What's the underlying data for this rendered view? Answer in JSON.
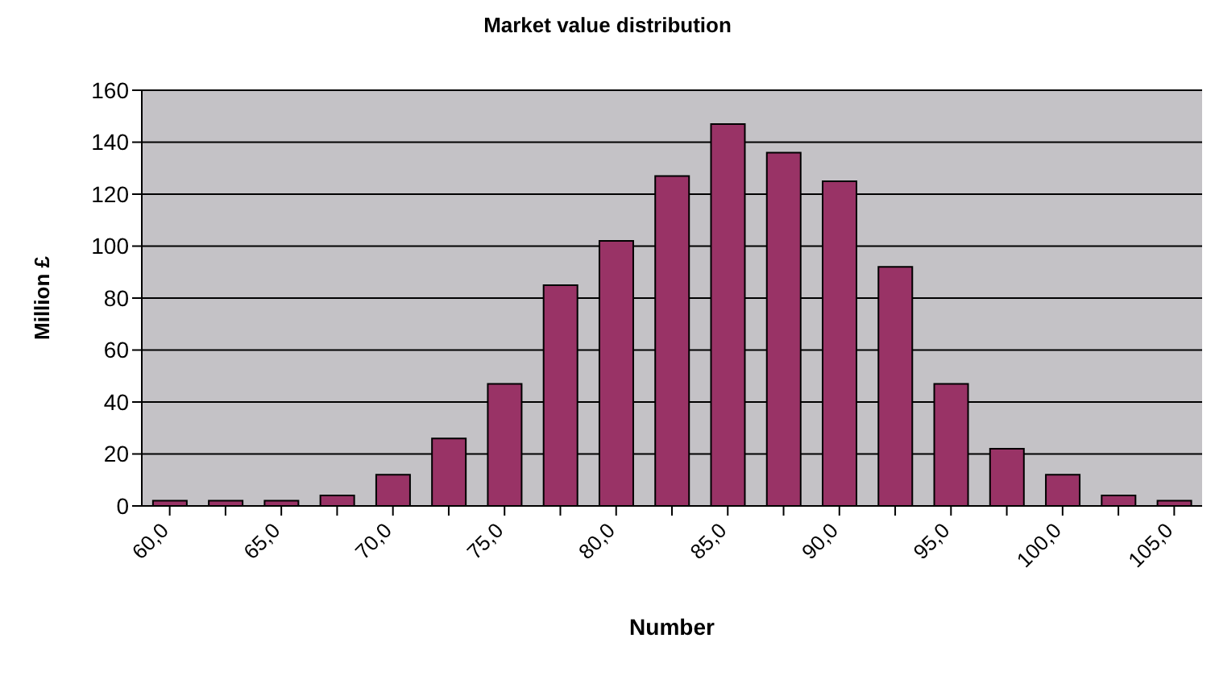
{
  "chart_data": {
    "type": "bar",
    "title": "Market value distribution",
    "xlabel": "Number",
    "ylabel": "Million £",
    "categories": [
      "60,0",
      null,
      "65,0",
      null,
      "70,0",
      null,
      "75,0",
      null,
      "80,0",
      null,
      "85,0",
      null,
      "90,0",
      null,
      "95,0",
      null,
      "100,0",
      null,
      "105,0"
    ],
    "values": [
      2,
      2,
      2,
      4,
      12,
      26,
      47,
      85,
      102,
      127,
      147,
      136,
      125,
      92,
      47,
      22,
      12,
      4,
      2
    ],
    "color": "#993366",
    "ylim": [
      0,
      160
    ],
    "yticks": [
      0,
      20,
      40,
      60,
      80,
      100,
      120,
      140,
      160
    ],
    "grid": "y"
  }
}
